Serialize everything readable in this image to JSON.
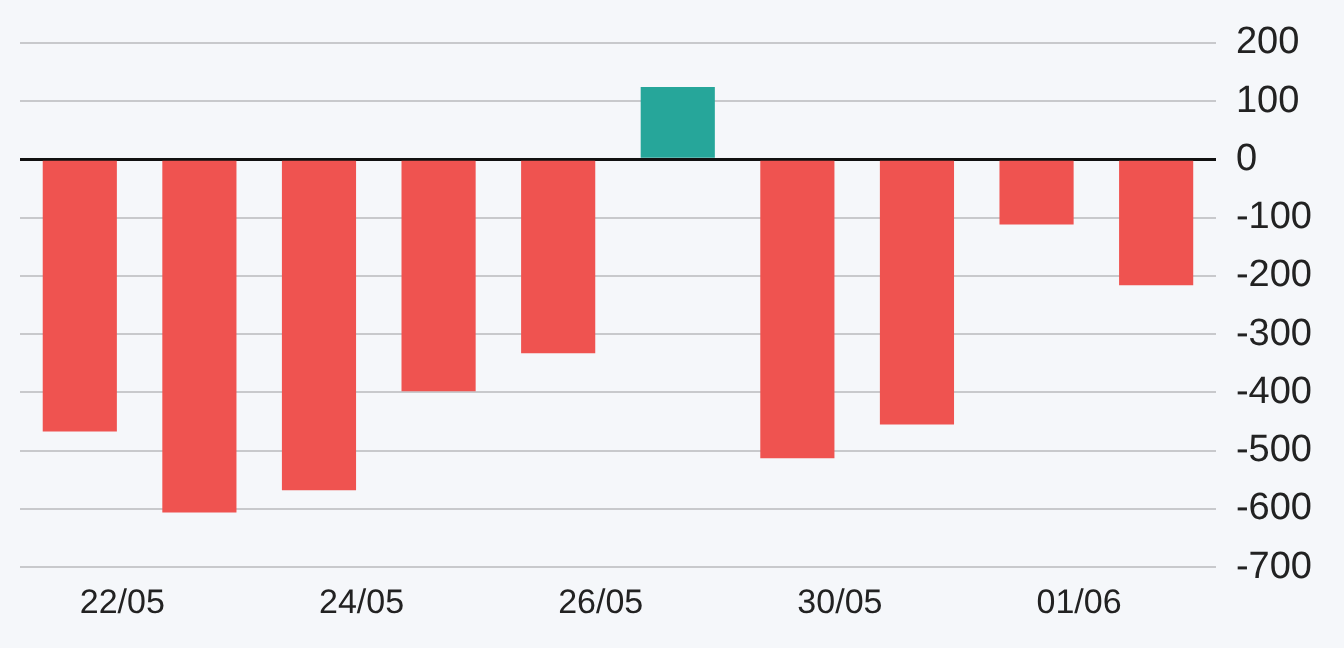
{
  "chart_data": {
    "type": "bar",
    "categories": [
      "22/05",
      null,
      "24/05",
      null,
      "26/05",
      null,
      "30/05",
      null,
      "01/06",
      null
    ],
    "values": [
      -467,
      -606,
      -568,
      -398,
      -333,
      124,
      -513,
      -455,
      -112,
      -216
    ],
    "colors": [
      "#ef5350",
      "#ef5350",
      "#ef5350",
      "#ef5350",
      "#ef5350",
      "#26a69a",
      "#ef5350",
      "#ef5350",
      "#ef5350",
      "#ef5350"
    ],
    "ylim": [
      -700,
      200
    ],
    "yticks": [
      200,
      100,
      0,
      -100,
      -200,
      -300,
      -400,
      -500,
      -600,
      -700
    ],
    "grid": "y",
    "legend": false
  }
}
